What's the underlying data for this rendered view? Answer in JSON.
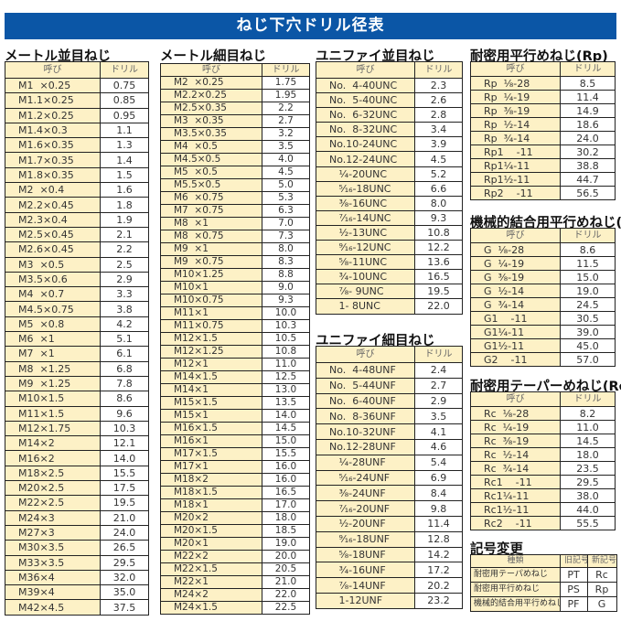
{
  "title": "ねじ下穴ドリル径表",
  "header_name": "呼び",
  "header_drill": "ドリル",
  "sections": [
    {
      "id": "metric-coarse",
      "title": "メートル並目ねじ",
      "rows": [
        [
          "M1  ×0.25",
          "0.75"
        ],
        [
          "M1.1×0.25",
          "0.85"
        ],
        [
          "M1.2×0.25",
          "0.95"
        ],
        [
          "M1.4×0.3",
          "1.1"
        ],
        [
          "M1.6×0.35",
          "1.3"
        ],
        [
          "M1.7×0.35",
          "1.4"
        ],
        [
          "M1.8×0.35",
          "1.5"
        ],
        [
          "M2  ×0.4",
          "1.6"
        ],
        [
          "M2.2×0.45",
          "1.8"
        ],
        [
          "M2.3×0.4",
          "1.9"
        ],
        [
          "M2.5×0.45",
          "2.1"
        ],
        [
          "M2.6×0.45",
          "2.2"
        ],
        [
          "M3  ×0.5",
          "2.5"
        ],
        [
          "M3.5×0.6",
          "2.9"
        ],
        [
          "M4  ×0.7",
          "3.3"
        ],
        [
          "M4.5×0.75",
          "3.8"
        ],
        [
          "M5  ×0.8",
          "4.2"
        ],
        [
          "M6  ×1",
          "5.1"
        ],
        [
          "M7  ×1",
          "6.1"
        ],
        [
          "M8  ×1.25",
          "6.8"
        ],
        [
          "M9  ×1.25",
          "7.8"
        ],
        [
          "M10×1.5",
          "8.6"
        ],
        [
          "M11×1.5",
          "9.6"
        ],
        [
          "M12×1.75",
          "10.3"
        ],
        [
          "M14×2",
          "12.1"
        ],
        [
          "M16×2",
          "14.0"
        ],
        [
          "M18×2.5",
          "15.5"
        ],
        [
          "M20×2.5",
          "17.5"
        ],
        [
          "M22×2.5",
          "19.5"
        ],
        [
          "M24×3",
          "21.0"
        ],
        [
          "M27×3",
          "24.0"
        ],
        [
          "M30×3.5",
          "26.5"
        ],
        [
          "M33×3.5",
          "29.5"
        ],
        [
          "M36×4",
          "32.0"
        ],
        [
          "M39×4",
          "35.0"
        ],
        [
          "M42×4.5",
          "37.5"
        ]
      ]
    },
    {
      "id": "metric-fine",
      "title": "メートル細目ねじ",
      "rows": [
        [
          "M2  ×0.25",
          "1.75"
        ],
        [
          "M2.2×0.25",
          "1.95"
        ],
        [
          "M2.5×0.35",
          "2.2"
        ],
        [
          "M3  ×0.35",
          "2.7"
        ],
        [
          "M3.5×0.35",
          "3.2"
        ],
        [
          "M4  ×0.5",
          "3.5"
        ],
        [
          "M4.5×0.5",
          "4.0"
        ],
        [
          "M5  ×0.5",
          "4.5"
        ],
        [
          "M5.5×0.5",
          "5.0"
        ],
        [
          "M6  ×0.75",
          "5.3"
        ],
        [
          "M7  ×0.75",
          "6.3"
        ],
        [
          "M8  ×1",
          "7.0"
        ],
        [
          "M8  ×0.75",
          "7.3"
        ],
        [
          "M9  ×1",
          "8.0"
        ],
        [
          "M9  ×0.75",
          "8.3"
        ],
        [
          "M10×1.25",
          "8.8"
        ],
        [
          "M10×1",
          "9.0"
        ],
        [
          "M10×0.75",
          "9.3"
        ],
        [
          "M11×1",
          "10.0"
        ],
        [
          "M11×0.75",
          "10.3"
        ],
        [
          "M12×1.5",
          "10.5"
        ],
        [
          "M12×1.25",
          "10.8"
        ],
        [
          "M12×1",
          "11.0"
        ],
        [
          "M14×1.5",
          "12.5"
        ],
        [
          "M14×1",
          "13.0"
        ],
        [
          "M15×1.5",
          "13.5"
        ],
        [
          "M15×1",
          "14.0"
        ],
        [
          "M16×1.5",
          "14.5"
        ],
        [
          "M16×1",
          "15.0"
        ],
        [
          "M17×1.5",
          "15.5"
        ],
        [
          "M17×1",
          "16.0"
        ],
        [
          "M18×2",
          "16.0"
        ],
        [
          "M18×1.5",
          "16.5"
        ],
        [
          "M18×1",
          "17.0"
        ],
        [
          "M20×2",
          "18.0"
        ],
        [
          "M20×1.5",
          "18.5"
        ],
        [
          "M20×1",
          "19.0"
        ],
        [
          "M22×2",
          "20.0"
        ],
        [
          "M22×1.5",
          "20.5"
        ],
        [
          "M22×1",
          "21.0"
        ],
        [
          "M24×2",
          "22.0"
        ],
        [
          "M24×1.5",
          "22.5"
        ]
      ]
    },
    {
      "id": "unc",
      "title": "ユニファイ並目ねじ",
      "rows": [
        [
          "No.  4-40UNC",
          "2.3"
        ],
        [
          "No.  5-40UNC",
          "2.6"
        ],
        [
          "No.  6-32UNC",
          "2.8"
        ],
        [
          "No.  8-32UNC",
          "3.4"
        ],
        [
          "No.10-24UNC",
          "3.9"
        ],
        [
          "No.12-24UNC",
          "4.5"
        ],
        [
          "   ¹⁄₄-20UNC",
          "5.2"
        ],
        [
          "   ⁵⁄₁₆-18UNC",
          "6.6"
        ],
        [
          "   ³⁄₈-16UNC",
          "8.0"
        ],
        [
          "   ⁷⁄₁₆-14UNC",
          "9.3"
        ],
        [
          "   ¹⁄₂-13UNC",
          "10.8"
        ],
        [
          "   ⁹⁄₁₆-12UNC",
          "12.2"
        ],
        [
          "   ⁵⁄₈-11UNC",
          "13.6"
        ],
        [
          "   ³⁄₄-10UNC",
          "16.5"
        ],
        [
          "   ⁷⁄₈- 9UNC",
          "19.5"
        ],
        [
          "   1- 8UNC",
          "22.0"
        ]
      ]
    },
    {
      "id": "unf",
      "title": "ユニファイ細目ねじ",
      "rows": [
        [
          "No.  4-48UNF",
          "2.4"
        ],
        [
          "No.  5-44UNF",
          "2.7"
        ],
        [
          "No.  6-40UNF",
          "2.9"
        ],
        [
          "No.  8-36UNF",
          "3.5"
        ],
        [
          "No.10-32UNF",
          "4.1"
        ],
        [
          "No.12-28UNF",
          "4.6"
        ],
        [
          "   ¹⁄₄-28UNF",
          "5.4"
        ],
        [
          "   ⁵⁄₁₆-24UNF",
          "6.9"
        ],
        [
          "   ³⁄₈-24UNF",
          "8.4"
        ],
        [
          "   ⁷⁄₁₆-20UNF",
          "9.8"
        ],
        [
          "   ¹⁄₂-20UNF",
          "11.4"
        ],
        [
          "   ⁹⁄₁₆-18UNF",
          "12.8"
        ],
        [
          "   ⁵⁄₈-18UNF",
          "14.2"
        ],
        [
          "   ³⁄₄-16UNF",
          "17.2"
        ],
        [
          "   ⁷⁄₈-14UNF",
          "20.2"
        ],
        [
          "   1-12UNF",
          "23.2"
        ]
      ]
    },
    {
      "id": "rp",
      "title": "耐密用平行めねじ(Rp)",
      "rows": [
        [
          "Rp  ¹⁄₈-28",
          "8.5"
        ],
        [
          "Rp  ¹⁄₄-19",
          "11.4"
        ],
        [
          "Rp  ³⁄₈-19",
          "14.9"
        ],
        [
          "Rp  ¹⁄₂-14",
          "18.6"
        ],
        [
          "Rp  ³⁄₄-14",
          "24.0"
        ],
        [
          "Rp1    -11",
          "30.2"
        ],
        [
          "Rp1¹⁄₄-11",
          "38.8"
        ],
        [
          "Rp1¹⁄₂-11",
          "44.7"
        ],
        [
          "Rp2    -11",
          "56.5"
        ]
      ]
    },
    {
      "id": "g",
      "title": "機械的結合用平行めねじ(G)",
      "rows": [
        [
          "G  ¹⁄₈-28",
          "8.6"
        ],
        [
          "G  ¹⁄₄-19",
          "11.5"
        ],
        [
          "G  ³⁄₈-19",
          "15.0"
        ],
        [
          "G  ¹⁄₂-14",
          "19.0"
        ],
        [
          "G  ³⁄₄-14",
          "24.5"
        ],
        [
          "G1    -11",
          "30.5"
        ],
        [
          "G1¹⁄₄-11",
          "39.0"
        ],
        [
          "G1¹⁄₂-11",
          "45.0"
        ],
        [
          "G2    -11",
          "57.0"
        ]
      ]
    },
    {
      "id": "rc",
      "title": "耐密用テーパーめねじ(Rc)",
      "rows": [
        [
          "Rc  ¹⁄₈-28",
          "8.2"
        ],
        [
          "Rc  ¹⁄₄-19",
          "11.0"
        ],
        [
          "Rc  ³⁄₈-19",
          "14.5"
        ],
        [
          "Rc  ¹⁄₂-14",
          "18.0"
        ],
        [
          "Rc  ³⁄₄-14",
          "23.5"
        ],
        [
          "Rc1    -11",
          "29.5"
        ],
        [
          "Rc1¹⁄₄-11",
          "38.0"
        ],
        [
          "Rc1¹⁄₂-11",
          "44.0"
        ],
        [
          "Rc2    -11",
          "55.5"
        ]
      ]
    }
  ],
  "symbol_change": {
    "title": "記号変更",
    "headers": [
      "種類",
      "旧記号",
      "新記号"
    ],
    "rows": [
      [
        "耐密用テーパめねじ",
        "PT",
        "Rc"
      ],
      [
        "耐密用平行めねじ",
        "PS",
        "Rp"
      ],
      [
        "機械的結合用平行めねじ",
        "PF",
        "G"
      ]
    ]
  }
}
